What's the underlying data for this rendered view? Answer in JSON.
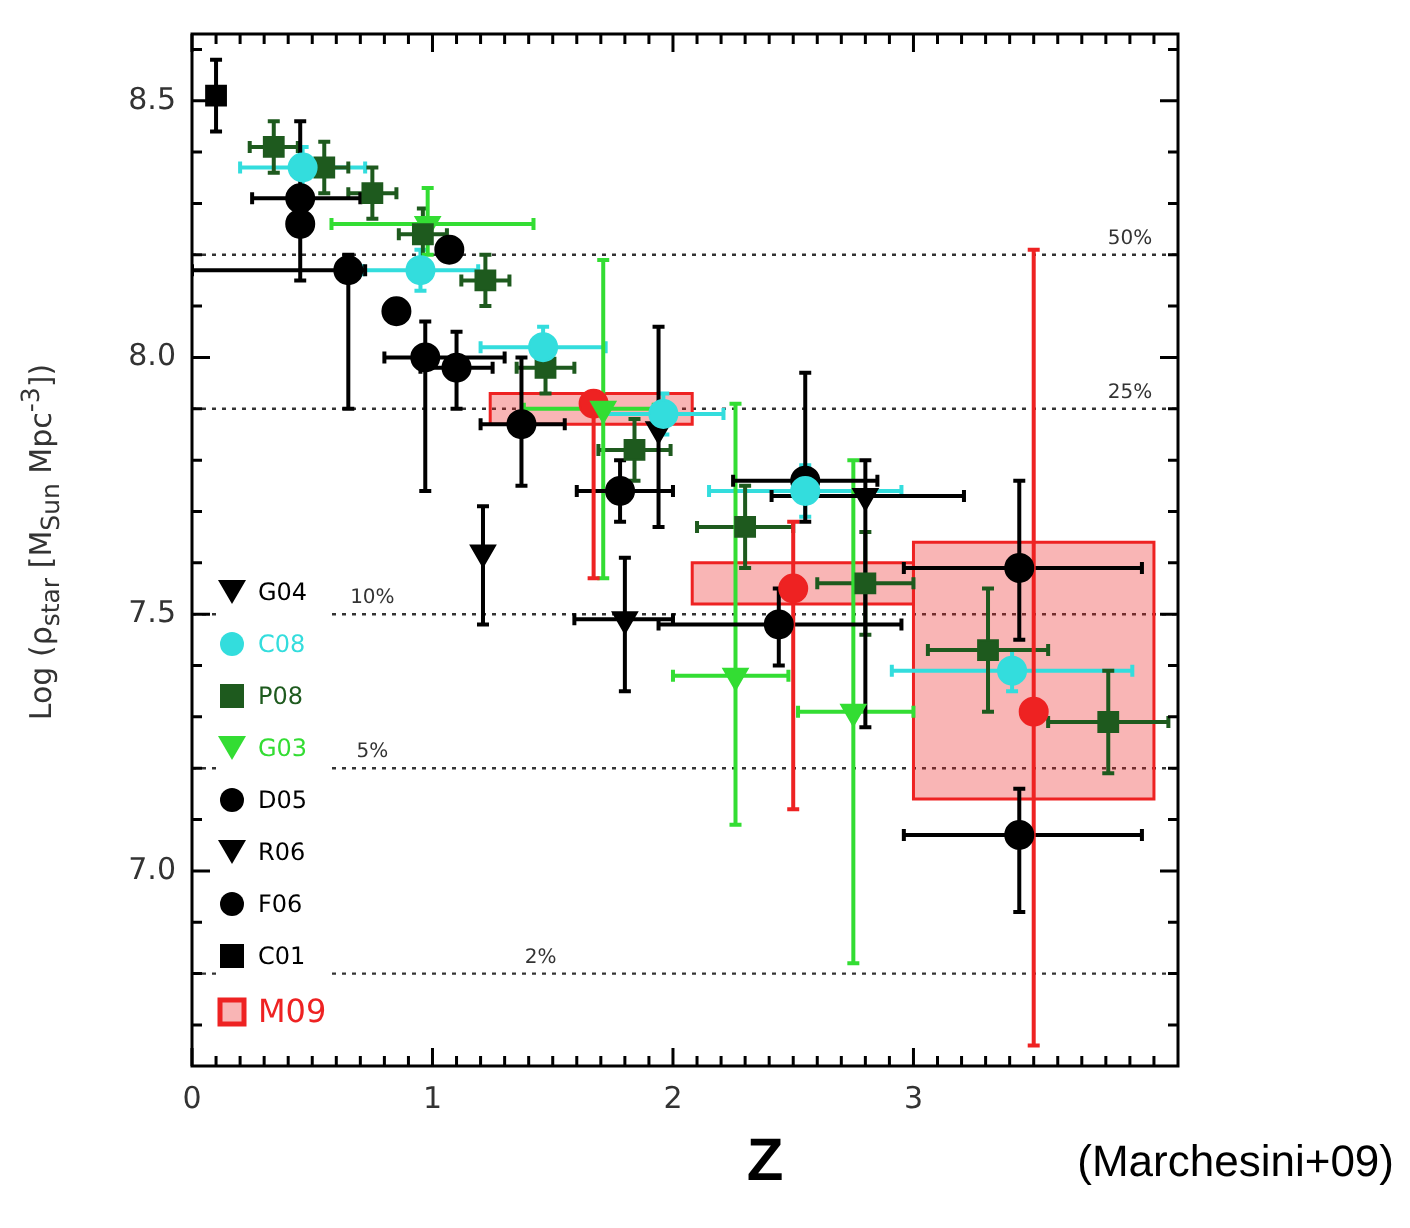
{
  "chart_data": {
    "type": "scatter",
    "xlabel": "Z",
    "ylabel": "Log (ρ$_{star}$ [M$_{Sun}$ Mpc$^{-3}$])",
    "annotations": [
      "(Marchesini+09)",
      {
        "text": "50%",
        "x": 3.9,
        "y": 8.2
      },
      {
        "text": "25%",
        "x": 3.9,
        "y": 7.9
      },
      {
        "text": "10%",
        "x": 0.75,
        "y": 7.5
      },
      {
        "text": "5%",
        "x": 0.75,
        "y": 7.2
      },
      {
        "text": "2%",
        "x": 1.45,
        "y": 6.8
      }
    ],
    "xlim": [
      0,
      4.1
    ],
    "ylim": [
      6.62,
      8.63
    ],
    "xticks": [
      0,
      {
        "value": 0.1,
        "label": null
      },
      {
        "value": 0.2,
        "label": null
      },
      {
        "value": 0.3,
        "label": null
      },
      {
        "value": 0.4,
        "label": null
      },
      {
        "value": 0.5,
        "label": null
      },
      {
        "value": 0.6,
        "label": null
      },
      {
        "value": 0.7,
        "label": null
      },
      {
        "value": 0.8,
        "label": null
      },
      {
        "value": 0.9,
        "label": null
      },
      1,
      {
        "value": 1.1,
        "label": null
      },
      {
        "value": 1.2,
        "label": null
      },
      {
        "value": 1.3,
        "label": null
      },
      {
        "value": 1.4,
        "label": null
      },
      {
        "value": 1.5,
        "label": null
      },
      {
        "value": 1.6,
        "label": null
      },
      {
        "value": 1.7,
        "label": null
      },
      {
        "value": 1.8,
        "label": null
      },
      {
        "value": 1.9,
        "label": null
      },
      2,
      {
        "value": 2.1,
        "label": null
      },
      {
        "value": 2.2,
        "label": null
      },
      {
        "value": 2.3,
        "label": null
      },
      {
        "value": 2.4,
        "label": null
      },
      {
        "value": 2.5,
        "label": null
      },
      {
        "value": 2.6,
        "label": null
      },
      {
        "value": 2.7,
        "label": null
      },
      {
        "value": 2.8,
        "label": null
      },
      {
        "value": 2.9,
        "label": null
      },
      3,
      {
        "value": 3.1,
        "label": null
      },
      {
        "value": 3.2,
        "label": null
      },
      {
        "value": 3.3,
        "label": null
      },
      {
        "value": 3.4,
        "label": null
      },
      {
        "value": 3.5,
        "label": null
      },
      {
        "value": 3.6,
        "label": null
      },
      {
        "value": 3.7,
        "label": null
      },
      {
        "value": 3.8,
        "label": null
      },
      {
        "value": 3.9,
        "label": null
      },
      {
        "value": 4,
        "label": null
      }
    ],
    "yticks": [
      {
        "value": 6.7,
        "label": null
      },
      {
        "value": 6.8,
        "label": null
      },
      {
        "value": 6.9,
        "label": null
      },
      {
        "value": 7,
        "label": "7.0"
      },
      {
        "value": 7.1,
        "label": null
      },
      {
        "value": 7.2,
        "label": null
      },
      {
        "value": 7.3,
        "label": null
      },
      {
        "value": 7.4,
        "label": null
      },
      7.5,
      {
        "value": 7.6,
        "label": null
      },
      {
        "value": 7.7,
        "label": null
      },
      {
        "value": 7.8,
        "label": null
      },
      {
        "value": 7.9,
        "label": null
      },
      {
        "value": 8,
        "label": "8.0"
      },
      {
        "value": 8.1,
        "label": null
      },
      {
        "value": 8.2,
        "label": null
      },
      {
        "value": 8.3,
        "label": null
      },
      {
        "value": 8.4,
        "label": null
      },
      8.5,
      {
        "value": 8.6,
        "label": null
      }
    ],
    "legend": "bottom left",
    "ref_lines": [
      {
        "axis": "y",
        "value": 8.2,
        "color": "#333333",
        "line_style": "dotted"
      },
      {
        "axis": "y",
        "value": 7.9,
        "color": "#333333",
        "line_style": "dotted"
      },
      {
        "axis": "y",
        "value": 7.5,
        "color": "#333333",
        "line_style": "dotted"
      },
      {
        "axis": "y",
        "value": 7.2,
        "color": "#333333",
        "line_style": "dotted"
      },
      {
        "axis": "y",
        "value": 6.8,
        "color": "#333333",
        "line_style": "dotted"
      }
    ],
    "series": [
      {
        "name": "G04",
        "color": "#000000",
        "marker": "triangle",
        "x": [
          1.21,
          1.8
        ],
        "values": [
          7.62,
          7.49
        ],
        "errors": [
          [
            7.48,
            7.71
          ],
          [
            7.35,
            7.61
          ]
        ],
        "xerrors": [
          null,
          [
            1.59,
            2.0
          ]
        ]
      },
      {
        "name": "C08",
        "color": "#33dddd",
        "marker": "circle",
        "x": [
          0.46,
          0.95,
          1.46,
          1.96,
          2.55,
          3.41
        ],
        "values": [
          8.37,
          8.17,
          8.02,
          7.89,
          7.74,
          7.39
        ],
        "errors": [
          0.04,
          0.04,
          0.04,
          0.04,
          0.05,
          0.04
        ],
        "xerrors": [
          0.26,
          0.24,
          0.26,
          0.25,
          0.4,
          0.5
        ]
      },
      {
        "name": "P08",
        "color": "#1e5a1e",
        "marker": "square",
        "x": [
          0.34,
          0.55,
          0.75,
          0.96,
          1.22,
          1.47,
          1.84,
          2.3,
          2.8,
          3.31,
          3.81
        ],
        "values": [
          8.41,
          8.37,
          8.32,
          8.24,
          8.15,
          7.98,
          7.82,
          7.67,
          7.56,
          7.43,
          7.29
        ],
        "errors": [
          0.05,
          0.05,
          0.05,
          0.05,
          0.05,
          0.05,
          0.06,
          0.08,
          0.1,
          0.12,
          0.1
        ],
        "xerrors": [
          0.1,
          0.1,
          0.1,
          0.1,
          0.1,
          0.12,
          0.15,
          0.2,
          0.2,
          0.25,
          0.25
        ]
      },
      {
        "name": "G03",
        "color": "#33dd33",
        "marker": "triangle",
        "x": [
          0.98,
          1.71,
          2.26,
          2.75
        ],
        "values": [
          8.26,
          7.9,
          7.38,
          7.31
        ],
        "errors": [
          [
            8.2,
            8.33
          ],
          [
            7.57,
            8.19
          ],
          [
            7.09,
            7.91
          ],
          [
            6.82,
            7.8
          ]
        ],
        "xerrors": [
          [
            0.58,
            1.42
          ],
          [
            1.38,
            1.92
          ],
          [
            2.0,
            2.48
          ],
          [
            2.52,
            3.0
          ]
        ]
      },
      {
        "name": "D05",
        "color": "#000000",
        "marker": "circle",
        "x": [
          0.45,
          0.97,
          1.07,
          2.55,
          3.44
        ],
        "values": [
          8.31,
          8.0,
          8.21,
          7.76,
          7.59
        ],
        "errors": [
          null,
          [
            7.74,
            8.07
          ],
          null,
          [
            7.68,
            7.97
          ],
          [
            7.45,
            7.76
          ]
        ],
        "xerrors": [
          [
            0.25,
            0.7
          ],
          [
            0.8,
            1.3
          ],
          null,
          [
            2.25,
            2.85
          ],
          [
            2.96,
            3.95
          ]
        ]
      },
      {
        "name": "R06",
        "color": "#000000",
        "marker": "triangle",
        "x": [
          1.94,
          2.8
        ],
        "values": [
          7.86,
          7.73
        ],
        "errors": [
          [
            7.67,
            8.06
          ],
          [
            7.28,
            7.8
          ]
        ],
        "xerrors": [
          null,
          [
            2.41,
            3.21
          ]
        ]
      },
      {
        "name": "F06",
        "color": "#000000",
        "marker": "circle",
        "x": [
          0.45,
          0.65,
          0.85,
          1.1,
          1.37,
          1.78,
          2.44,
          3.44
        ],
        "values": [
          8.26,
          8.17,
          8.09,
          7.98,
          7.87,
          7.74,
          7.48,
          7.07
        ],
        "errors": [
          [
            8.15,
            8.46
          ],
          [
            7.9,
            8.2
          ],
          null,
          [
            7.9,
            8.05
          ],
          [
            7.75,
            8.0
          ],
          [
            7.68,
            7.8
          ],
          [
            7.4,
            7.55
          ],
          [
            6.92,
            7.16
          ]
        ],
        "xerrors": [
          null,
          [
            0,
            0.72
          ],
          null,
          [
            0.95,
            1.25
          ],
          [
            1.2,
            1.55
          ],
          [
            1.6,
            2.0
          ],
          [
            1.94,
            2.95
          ],
          [
            2.96,
            3.95
          ]
        ]
      },
      {
        "name": "C01",
        "color": "#000000",
        "marker": "square",
        "x": [
          0.1
        ],
        "values": [
          8.51
        ],
        "errors": [
          [
            8.44,
            8.58
          ]
        ]
      },
      {
        "name": "M09",
        "type": "bar",
        "color": "#ee2222",
        "x": [
          1.66,
          2.5,
          3.5
        ],
        "base": [
          7.87,
          7.52,
          7.14
        ],
        "values": [
          0.06,
          0.08,
          0.5
        ]
      },
      {
        "color": "#ee2222",
        "marker": "circle",
        "x": [
          1.67,
          2.5,
          3.5
        ],
        "values": [
          7.91,
          7.55,
          7.31
        ],
        "errors": [
          [
            7.57,
            7.93
          ],
          [
            7.12,
            7.68
          ],
          [
            6.66,
            8.21
          ]
        ]
      }
    ]
  }
}
